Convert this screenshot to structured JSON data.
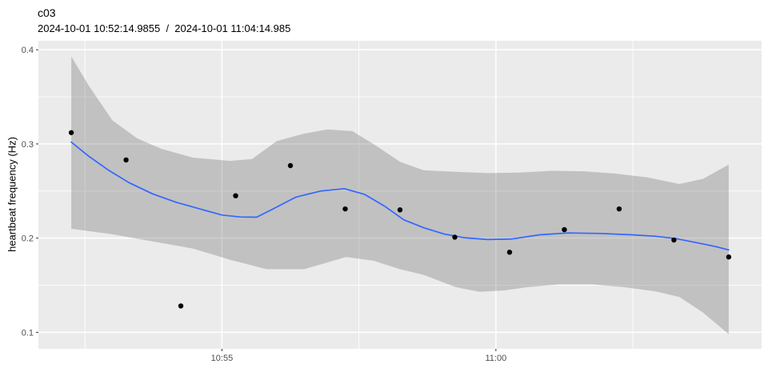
{
  "header": {
    "title": "c03",
    "subtitle": "2024-10-01 10:52:14.9855  /  2024-10-01 11:04:14.985"
  },
  "chart_data": {
    "type": "scatter",
    "smoother": "loess-with-confidence-band",
    "title": "c03",
    "subtitle": "2024-10-01 10:52:14.9855  /  2024-10-01 11:04:14.985",
    "xlabel": "",
    "ylabel": "heartbeat frequency (Hz)",
    "x_tick_labels": [
      "10:55",
      "11:00"
    ],
    "y_tick_labels": [
      "0.1",
      "0.2",
      "0.3",
      "0.4"
    ],
    "grid": "on",
    "legend": "none",
    "time_origin": "10:52:14.9855",
    "x_domain_t": [
      -36,
      756
    ],
    "y_domain": [
      0.0825,
      0.4095
    ],
    "x_ticks": [
      {
        "t": 165,
        "label": "10:55"
      },
      {
        "t": 465,
        "label": "11:00"
      }
    ],
    "x_minor_ticks_t": [
      15,
      315,
      615
    ],
    "y_ticks": [
      0.1,
      0.2,
      0.3,
      0.4
    ],
    "y_minor_ticks": [
      0.15,
      0.25,
      0.35
    ],
    "points": [
      {
        "time": "10:52:15",
        "t": 0,
        "y": 0.312
      },
      {
        "time": "10:53:15",
        "t": 60,
        "y": 0.283
      },
      {
        "time": "10:54:15",
        "t": 120,
        "y": 0.128
      },
      {
        "time": "10:55:15",
        "t": 180,
        "y": 0.245
      },
      {
        "time": "10:56:15",
        "t": 240,
        "y": 0.277
      },
      {
        "time": "10:57:15",
        "t": 300,
        "y": 0.231
      },
      {
        "time": "10:58:15",
        "t": 360,
        "y": 0.23
      },
      {
        "time": "10:59:15",
        "t": 420,
        "y": 0.201
      },
      {
        "time": "11:00:15",
        "t": 480,
        "y": 0.185
      },
      {
        "time": "11:01:15",
        "t": 540,
        "y": 0.209
      },
      {
        "time": "11:02:15",
        "t": 600,
        "y": 0.231
      },
      {
        "time": "11:03:15",
        "t": 660,
        "y": 0.198
      },
      {
        "time": "11:04:15",
        "t": 720,
        "y": 0.18
      }
    ],
    "smooth_line": [
      [
        0,
        0.302
      ],
      [
        19,
        0.287
      ],
      [
        41,
        0.272
      ],
      [
        63,
        0.259
      ],
      [
        89,
        0.247
      ],
      [
        115,
        0.238
      ],
      [
        141,
        0.231
      ],
      [
        165,
        0.2245
      ],
      [
        185,
        0.2225
      ],
      [
        203,
        0.2222
      ],
      [
        220,
        0.2305
      ],
      [
        246,
        0.2435
      ],
      [
        273,
        0.25
      ],
      [
        299,
        0.2525
      ],
      [
        321,
        0.2465
      ],
      [
        343,
        0.234
      ],
      [
        364,
        0.2195
      ],
      [
        386,
        0.211
      ],
      [
        408,
        0.2045
      ],
      [
        430,
        0.2005
      ],
      [
        456,
        0.1985
      ],
      [
        482,
        0.199
      ],
      [
        513,
        0.2035
      ],
      [
        544,
        0.2055
      ],
      [
        579,
        0.205
      ],
      [
        614,
        0.2035
      ],
      [
        640,
        0.202
      ],
      [
        662,
        0.1995
      ],
      [
        688,
        0.1945
      ],
      [
        706,
        0.191
      ],
      [
        720,
        0.1875
      ]
    ],
    "band_upper": [
      [
        0,
        0.393
      ],
      [
        19,
        0.362
      ],
      [
        45,
        0.325
      ],
      [
        72,
        0.306
      ],
      [
        98,
        0.295
      ],
      [
        133,
        0.2855
      ],
      [
        174,
        0.282
      ],
      [
        198,
        0.284
      ],
      [
        225,
        0.303
      ],
      [
        255,
        0.311
      ],
      [
        281,
        0.3155
      ],
      [
        308,
        0.3135
      ],
      [
        334,
        0.298
      ],
      [
        360,
        0.281
      ],
      [
        386,
        0.272
      ],
      [
        421,
        0.2705
      ],
      [
        456,
        0.269
      ],
      [
        491,
        0.2695
      ],
      [
        526,
        0.2715
      ],
      [
        561,
        0.271
      ],
      [
        596,
        0.2685
      ],
      [
        631,
        0.2645
      ],
      [
        666,
        0.2575
      ],
      [
        692,
        0.263
      ],
      [
        720,
        0.278
      ]
    ],
    "band_lower": [
      [
        0,
        0.21
      ],
      [
        45,
        0.204
      ],
      [
        92,
        0.196
      ],
      [
        133,
        0.189
      ],
      [
        174,
        0.177
      ],
      [
        214,
        0.167
      ],
      [
        255,
        0.167
      ],
      [
        301,
        0.18
      ],
      [
        331,
        0.176
      ],
      [
        360,
        0.167
      ],
      [
        386,
        0.161
      ],
      [
        421,
        0.148
      ],
      [
        447,
        0.143
      ],
      [
        474,
        0.1445
      ],
      [
        500,
        0.148
      ],
      [
        535,
        0.151
      ],
      [
        570,
        0.151
      ],
      [
        605,
        0.148
      ],
      [
        640,
        0.1435
      ],
      [
        666,
        0.1375
      ],
      [
        692,
        0.121
      ],
      [
        720,
        0.098
      ]
    ],
    "colors": {
      "panel_bg": "#EBEBEB",
      "grid": "#FFFFFF",
      "band": "#6B6B6B",
      "band_opacity": 0.32,
      "smooth_line": "#3366FF",
      "point": "#000000",
      "tick_mark": "#333333",
      "tick_label": "#4D4D4D"
    }
  }
}
